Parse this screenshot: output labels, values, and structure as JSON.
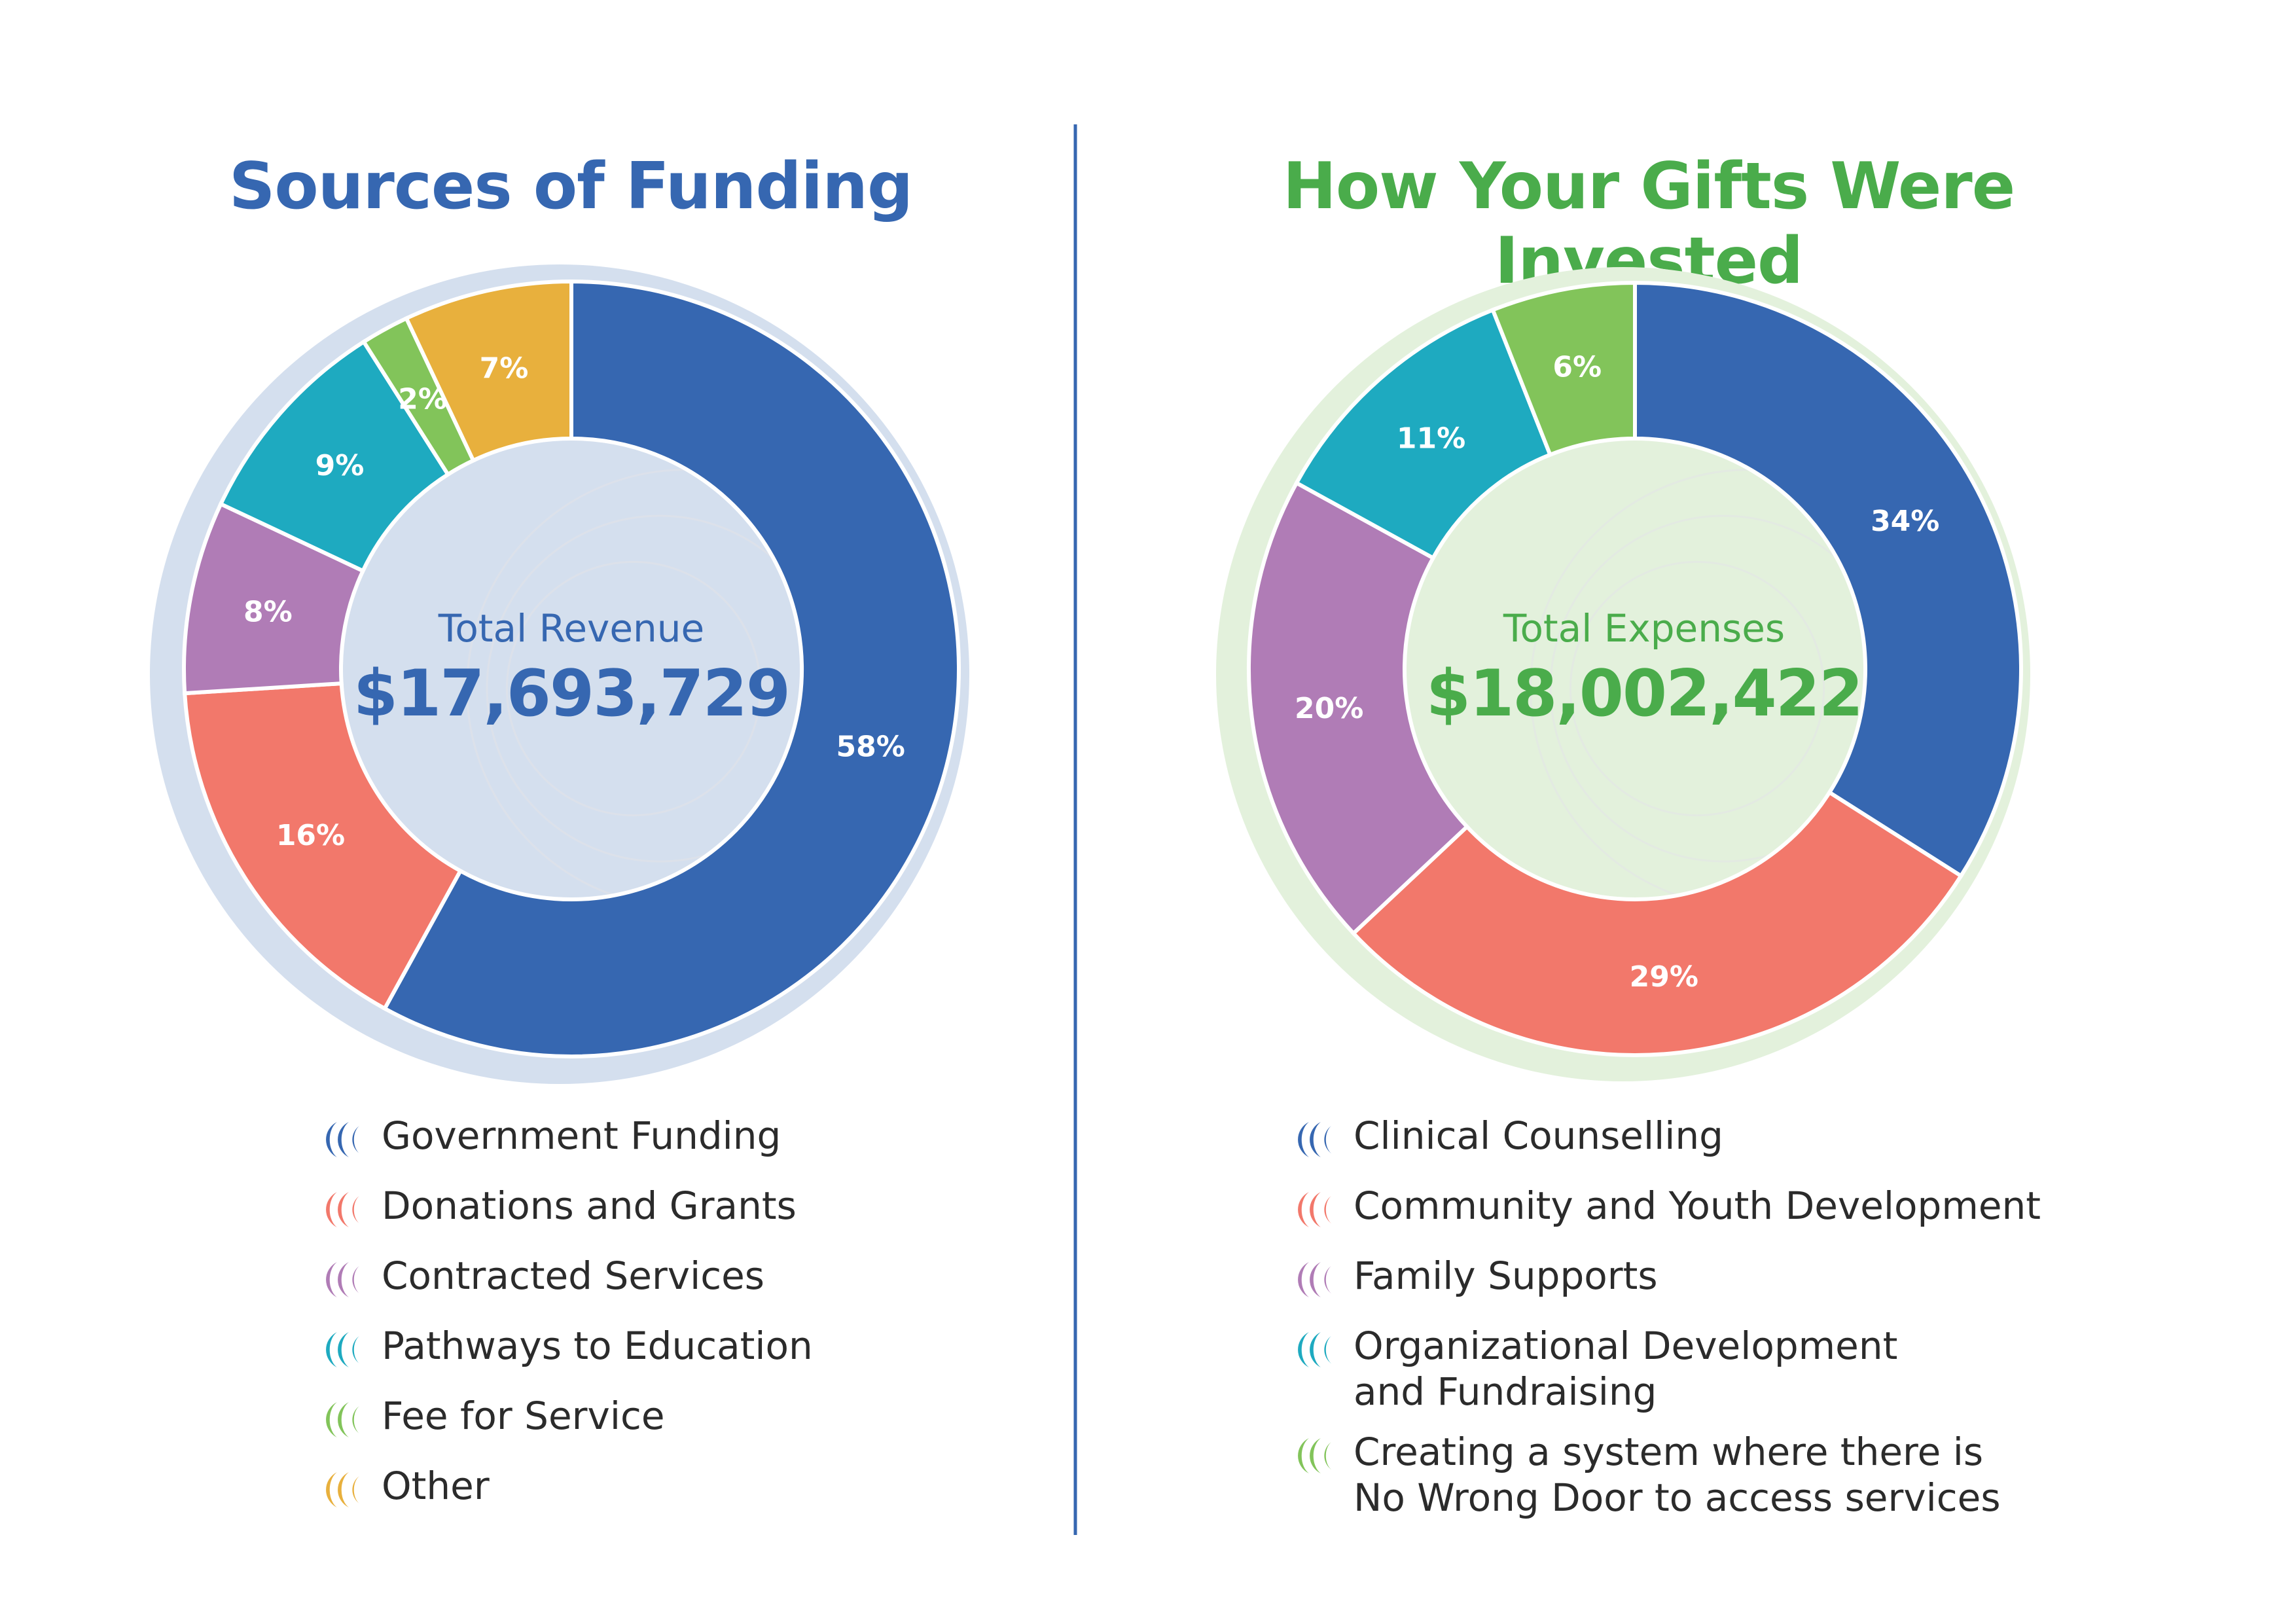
{
  "left": {
    "title": "Sources of Funding",
    "center_label": "Total Revenue",
    "center_value": "$17,693,729"
  },
  "right": {
    "title": "How Your Gifts Were Invested",
    "center_label": "Total Expenses",
    "center_value": "$18,002,422"
  },
  "colors": {
    "blue": "#3667b1",
    "coral": "#f2786b",
    "purple": "#b07cb6",
    "teal": "#1eaac0",
    "green": "#82c45a",
    "gold": "#e8b03d",
    "left_halo": "#d4dfee",
    "right_halo": "#e3f1dc",
    "divider": "#3667b1"
  },
  "chart_data": [
    {
      "type": "pie",
      "title": "Sources of Funding",
      "categories": [
        "Government Funding",
        "Donations and Grants",
        "Contracted Services",
        "Pathways to Education",
        "Fee for Service",
        "Other"
      ],
      "values": [
        58,
        16,
        8,
        9,
        2,
        7
      ],
      "labels": [
        "58%",
        "16%",
        "8%",
        "9%",
        "2%",
        "7%"
      ],
      "colors": [
        "#3667b1",
        "#f2786b",
        "#b07cb6",
        "#1eaac0",
        "#82c45a",
        "#e8b03d"
      ],
      "legend": [
        "Government Funding",
        "Donations and Grants",
        "Contracted Services",
        "Pathways to Education",
        "Fee for Service",
        "Other"
      ]
    },
    {
      "type": "pie",
      "title": "How Your Gifts Were Invested",
      "categories": [
        "Clinical Counselling",
        "Community and Youth Development",
        "Family Supports",
        "Organizational Development and Fundraising",
        "Creating a system where there is No Wrong Door to access services"
      ],
      "values": [
        34,
        29,
        20,
        11,
        6
      ],
      "labels": [
        "34%",
        "29%",
        "20%",
        "11%",
        "6%"
      ],
      "colors": [
        "#3667b1",
        "#f2786b",
        "#b07cb6",
        "#1eaac0",
        "#82c45a"
      ],
      "legend": [
        [
          "Clinical Counselling"
        ],
        [
          "Community and Youth Development"
        ],
        [
          "Family Supports"
        ],
        [
          "Organizational Development",
          "and Fundraising"
        ],
        [
          "Creating a system where there is",
          "No Wrong Door to access services"
        ]
      ]
    }
  ]
}
